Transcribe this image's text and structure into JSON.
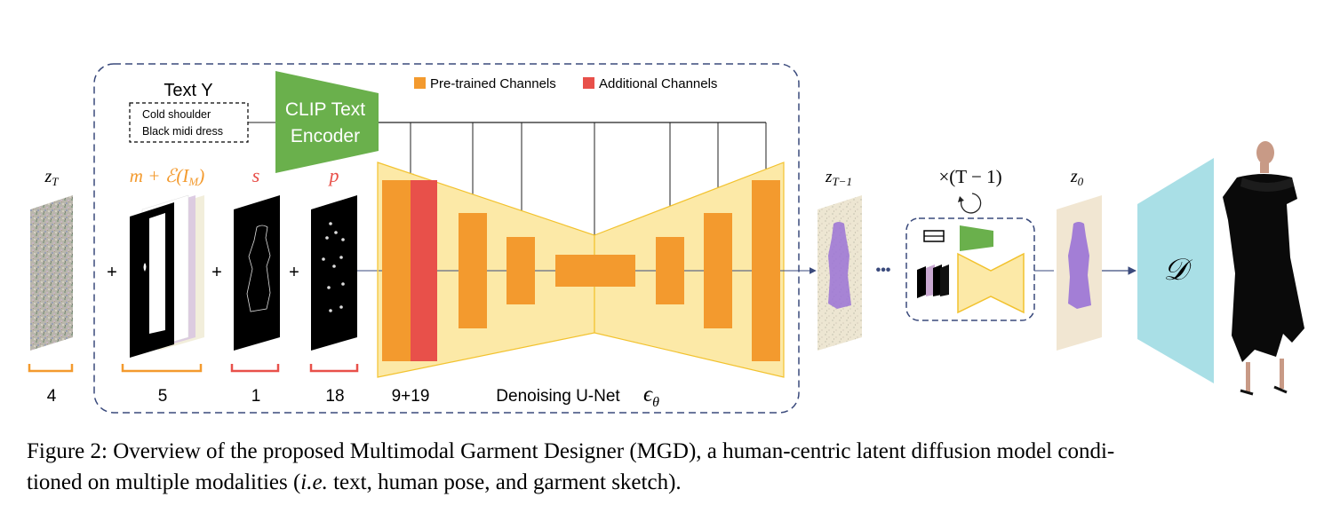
{
  "text_prompt": {
    "title": "Text Y",
    "lines": [
      "Cold shoulder",
      "Black midi dress"
    ]
  },
  "encoder": {
    "line1": "CLIP Text",
    "line2": "Encoder"
  },
  "legend": {
    "pretrained": {
      "label": "Pre-trained Channels",
      "color": "#f39a2e"
    },
    "additional": {
      "label": "Additional Channels",
      "color": "#e8504a"
    }
  },
  "inputs": {
    "zT": {
      "label": "z_T",
      "channels": "4"
    },
    "mask": {
      "label": "m + ℰ(I_M)",
      "channels": "5"
    },
    "s": {
      "label": "s",
      "channels": "1"
    },
    "p": {
      "label": "p",
      "channels": "18"
    }
  },
  "unet": {
    "channels": "9+19",
    "label": "Denoising U-Net",
    "symbol": "ϵθ"
  },
  "outputs": {
    "zT1": {
      "label": "z_{T−1}"
    },
    "repeat": {
      "label": "×(T − 1)",
      "ellipsis": "•••"
    },
    "z0": {
      "label": "z_0"
    },
    "decoder": {
      "label": "𝒟"
    }
  },
  "colors": {
    "unet_fill": "#fce9a7",
    "unet_stroke": "#f2c22e",
    "dashed_border": "#3a4a7c",
    "encoder_green": "#6ab04c",
    "decoder_cyan": "#a9dfe6",
    "label_orange": "#f39a2e",
    "label_red": "#e8504a",
    "arrow": "#3a4a7c"
  },
  "caption": {
    "line1": "Figure 2: Overview of the proposed Multimodal Garment Designer (MGD), a human-centric latent diffusion model condi-",
    "line2_pre": "tioned on multiple modalities (",
    "line2_em": "i.e.",
    "line2_post": " text, human pose, and garment sketch)."
  }
}
